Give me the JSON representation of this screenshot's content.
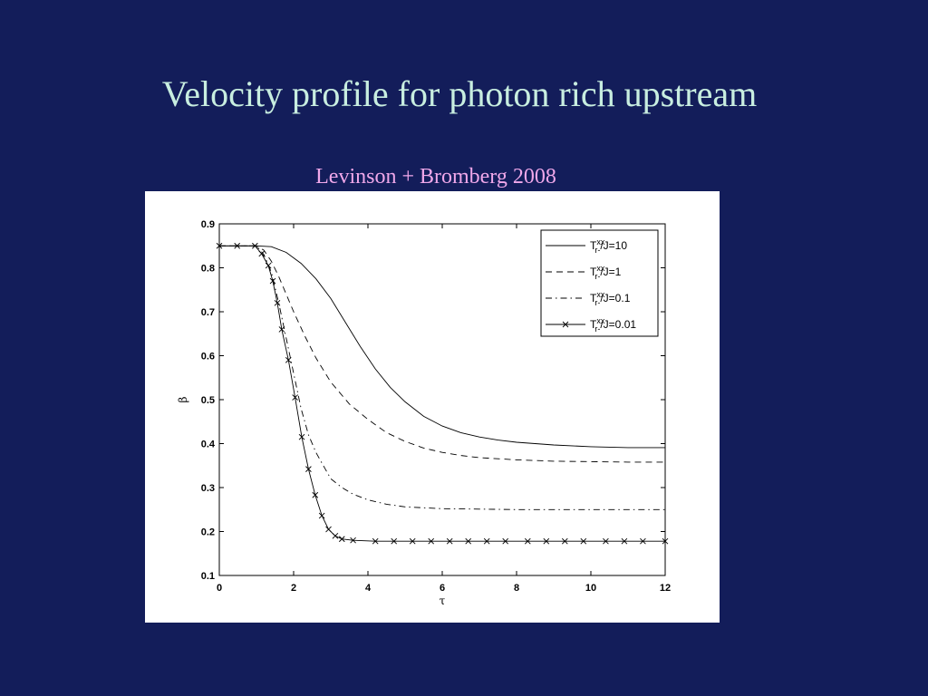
{
  "slide": {
    "title": "Velocity profile for photon rich upstream",
    "subtitle": "Levinson + Bromberg 2008"
  },
  "chart_data": {
    "type": "line",
    "title": "",
    "xlabel": "τ",
    "ylabel": "β",
    "xlim": [
      0,
      12
    ],
    "ylim": [
      0.1,
      0.9
    ],
    "xticks": [
      0,
      2,
      4,
      6,
      8,
      10,
      12
    ],
    "yticks": [
      0.1,
      0.2,
      0.3,
      0.4,
      0.5,
      0.6,
      0.7,
      0.8,
      0.9
    ],
    "grid": false,
    "legend_position": "top-right",
    "series": [
      {
        "name": "T_r-^xx/J=10",
        "legend_main": "T",
        "legend_sup": "xx",
        "legend_sub": "r-",
        "legend_rest": "/J=10",
        "style": "solid",
        "marker": "none",
        "x": [
          0,
          1,
          1.4,
          1.8,
          2.2,
          2.6,
          3.0,
          3.4,
          3.8,
          4.2,
          4.6,
          5.0,
          5.5,
          6.0,
          6.5,
          7.0,
          7.5,
          8.0,
          9.0,
          10.0,
          11.0,
          12.0
        ],
        "y": [
          0.85,
          0.85,
          0.848,
          0.835,
          0.81,
          0.775,
          0.73,
          0.675,
          0.62,
          0.57,
          0.528,
          0.495,
          0.462,
          0.44,
          0.425,
          0.415,
          0.408,
          0.403,
          0.397,
          0.393,
          0.391,
          0.391
        ]
      },
      {
        "name": "T_r-^xx/J=1",
        "legend_main": "T",
        "legend_sup": "xx",
        "legend_sub": "r-",
        "legend_rest": "/J=1",
        "style": "dashed",
        "marker": "none",
        "x": [
          0,
          1,
          1.2,
          1.4,
          1.6,
          1.8,
          2.0,
          2.3,
          2.6,
          3.0,
          3.5,
          4.0,
          4.5,
          5.0,
          5.5,
          6.0,
          6.5,
          7.0,
          8.0,
          9.0,
          10.0,
          11.0,
          12.0
        ],
        "y": [
          0.85,
          0.85,
          0.84,
          0.815,
          0.78,
          0.74,
          0.7,
          0.645,
          0.595,
          0.54,
          0.49,
          0.455,
          0.425,
          0.405,
          0.39,
          0.38,
          0.373,
          0.368,
          0.363,
          0.36,
          0.359,
          0.358,
          0.358
        ]
      },
      {
        "name": "T_r-^xx/J=0.1",
        "legend_main": "T",
        "legend_sup": "xx",
        "legend_sub": "r-",
        "legend_rest": "/J=0.1",
        "style": "dashdot",
        "marker": "none",
        "x": [
          0,
          1,
          1.2,
          1.4,
          1.6,
          1.8,
          2.0,
          2.2,
          2.4,
          2.6,
          2.8,
          3.0,
          3.3,
          3.6,
          4.0,
          4.5,
          5.0,
          6.0,
          7.0,
          8.0,
          10.0,
          12.0
        ],
        "y": [
          0.85,
          0.85,
          0.83,
          0.79,
          0.72,
          0.64,
          0.56,
          0.48,
          0.42,
          0.38,
          0.35,
          0.32,
          0.3,
          0.285,
          0.272,
          0.262,
          0.256,
          0.252,
          0.251,
          0.25,
          0.25,
          0.25
        ]
      },
      {
        "name": "T_r-^xx/J=0.01",
        "legend_main": "T",
        "legend_sup": "xx",
        "legend_sub": "r-",
        "legend_rest": "/J=0.01",
        "style": "solid",
        "marker": "x",
        "x": [
          0,
          0.48,
          0.96,
          1.14,
          1.32,
          1.44,
          1.56,
          1.68,
          1.86,
          2.04,
          2.22,
          2.4,
          2.58,
          2.76,
          2.94,
          3.12,
          3.3,
          3.6,
          4.2,
          4.7,
          5.2,
          5.7,
          6.2,
          6.7,
          7.2,
          7.7,
          8.3,
          8.8,
          9.3,
          9.8,
          10.4,
          10.9,
          11.4,
          12.0
        ],
        "y": [
          0.85,
          0.85,
          0.85,
          0.832,
          0.805,
          0.77,
          0.72,
          0.66,
          0.59,
          0.505,
          0.415,
          0.342,
          0.283,
          0.236,
          0.205,
          0.19,
          0.183,
          0.18,
          0.178,
          0.178,
          0.178,
          0.178,
          0.178,
          0.178,
          0.178,
          0.178,
          0.178,
          0.178,
          0.178,
          0.178,
          0.178,
          0.178,
          0.178,
          0.178
        ]
      }
    ]
  }
}
